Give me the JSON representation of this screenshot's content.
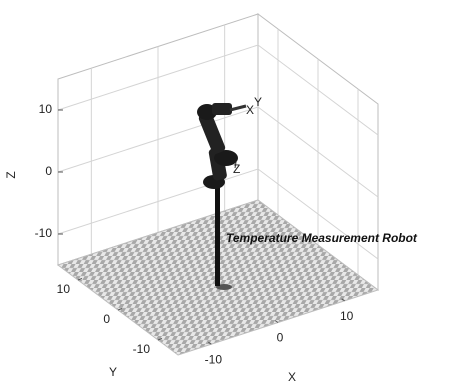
{
  "chart_data": {
    "type": "robot-3d",
    "xlabel": "X",
    "ylabel": "Y",
    "zlabel": "Z",
    "xlim": [
      -15,
      15
    ],
    "ylim": [
      -15,
      15
    ],
    "zlim": [
      -15,
      15
    ],
    "xticks": [
      -10,
      0,
      10
    ],
    "yticks": [
      -10,
      0,
      10
    ],
    "zticks": [
      -10,
      0,
      10
    ],
    "grid": true,
    "annotation": "Temperature Measurement Robot",
    "frame_labels": [
      "X",
      "Y",
      "Z"
    ]
  }
}
